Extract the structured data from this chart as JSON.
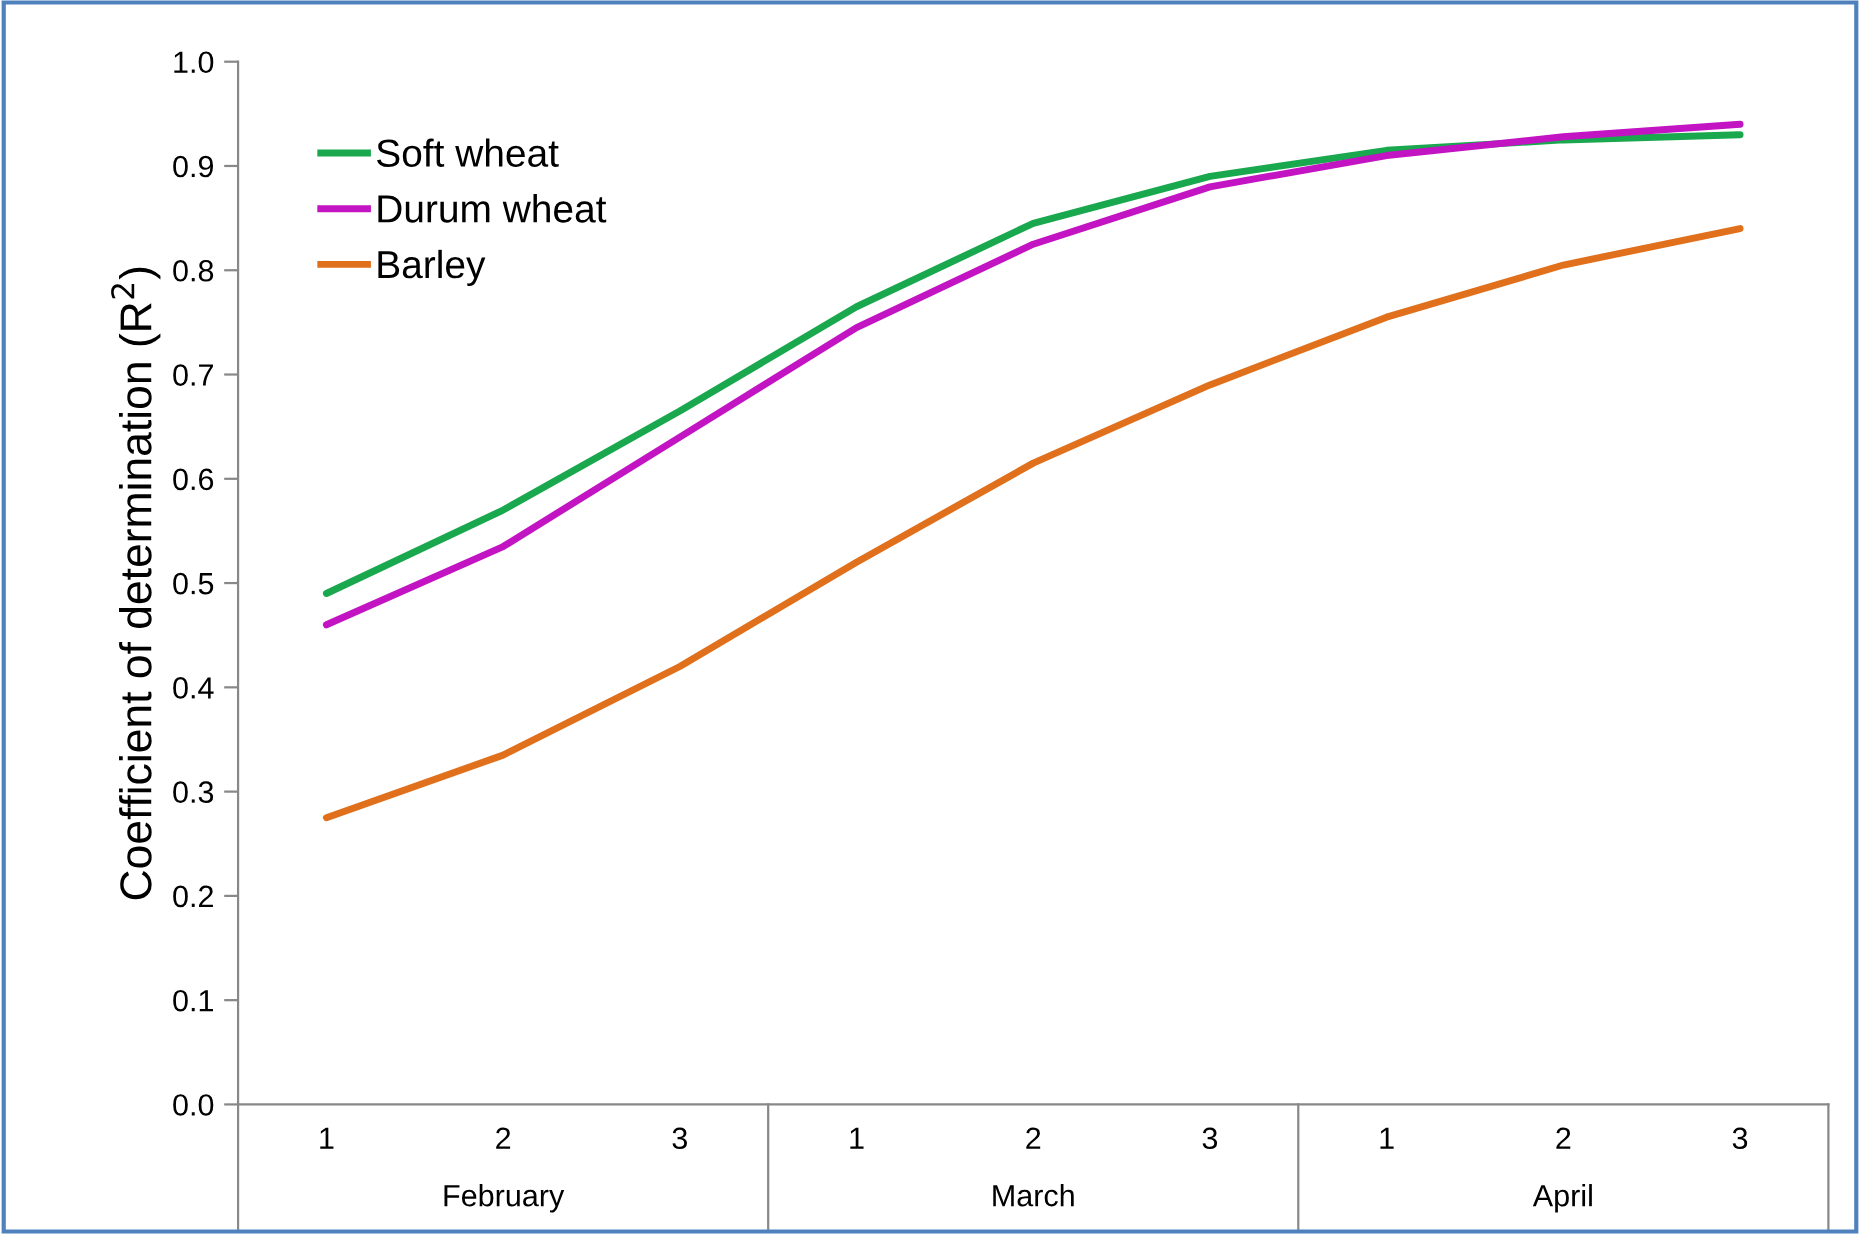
{
  "chart_data": {
    "type": "line",
    "ylabel": "Coefficient of determination (R$^{2}$)",
    "categories": [
      "1",
      "2",
      "3",
      "1",
      "2",
      "3",
      "1",
      "2",
      "3"
    ],
    "series": [
      {
        "name": "Soft wheat",
        "color": "#1aa84e",
        "values": [
          0.49,
          0.57,
          0.665,
          0.765,
          0.845,
          0.89,
          0.915,
          0.925,
          0.93
        ]
      },
      {
        "name": "Durum wheat",
        "color": "#c214c2",
        "values": [
          0.46,
          0.535,
          0.64,
          0.745,
          0.825,
          0.88,
          0.91,
          0.928,
          0.94
        ]
      },
      {
        "name": "Barley",
        "color": "#e0701c",
        "values": [
          0.275,
          0.335,
          0.42,
          0.52,
          0.615,
          0.69,
          0.755,
          0.805,
          0.84
        ]
      }
    ],
    "annotations": [
      "February",
      "March",
      "April"
    ],
    "ylim": [
      0,
      1
    ],
    "yticks": [
      {
        "value": 0,
        "label": "0.0"
      },
      {
        "value": 0.1,
        "label": "0.1"
      },
      {
        "value": 0.2,
        "label": "0.2"
      },
      {
        "value": 0.3,
        "label": "0.3"
      },
      {
        "value": 0.4,
        "label": "0.4"
      },
      {
        "value": 0.5,
        "label": "0.5"
      },
      {
        "value": 0.6,
        "label": "0.6"
      },
      {
        "value": 0.7,
        "label": "0.7"
      },
      {
        "value": 0.8,
        "label": "0.8"
      },
      {
        "value": 0.9,
        "label": "0.9"
      },
      {
        "value": 1,
        "label": "1.0"
      }
    ],
    "grid": false,
    "legend": "top left",
    "marker": "none",
    "line_style": "solid"
  }
}
